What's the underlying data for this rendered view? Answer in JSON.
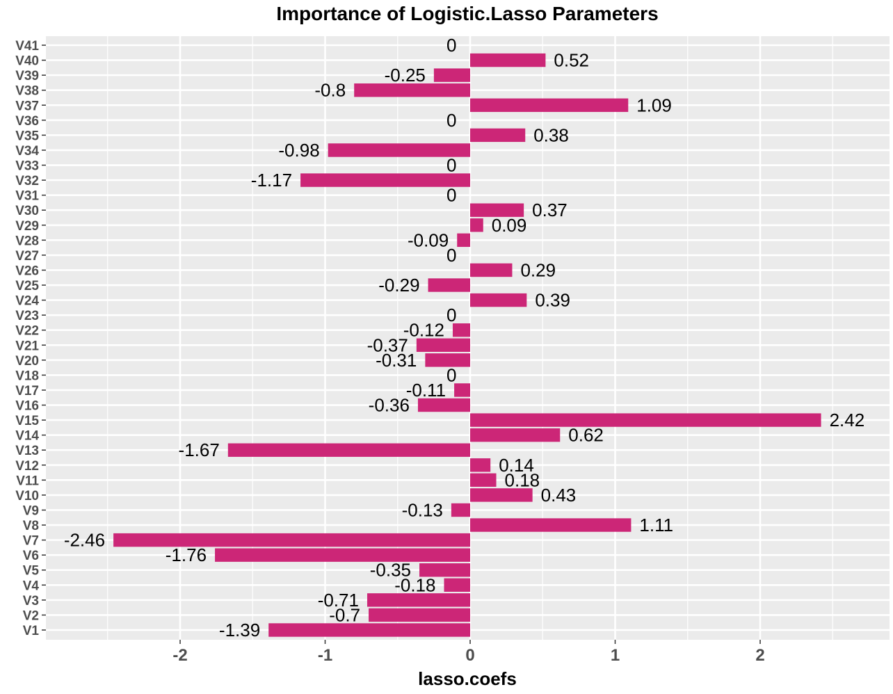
{
  "chart_data": {
    "type": "bar",
    "orientation": "horizontal",
    "title": "Importance of Logistic.Lasso Parameters",
    "xlabel": "lasso.coefs",
    "ylabel": "",
    "xlim": [
      -2.55,
      2.55
    ],
    "x_ticks": [
      -2,
      -1,
      0,
      1,
      2
    ],
    "grid": true,
    "bar_color": "#CC2677",
    "panel_background": "#EBEBEB",
    "grid_color": "#FFFFFF",
    "categories": [
      "V1",
      "V2",
      "V3",
      "V4",
      "V5",
      "V6",
      "V7",
      "V8",
      "V9",
      "V10",
      "V11",
      "V12",
      "V13",
      "V14",
      "V15",
      "V16",
      "V17",
      "V18",
      "V20",
      "V21",
      "V22",
      "V23",
      "V24",
      "V25",
      "V26",
      "V27",
      "V28",
      "V29",
      "V30",
      "V31",
      "V32",
      "V33",
      "V34",
      "V35",
      "V36",
      "V37",
      "V38",
      "V39",
      "V40",
      "V41"
    ],
    "values": [
      -1.39,
      -0.7,
      -0.71,
      -0.18,
      -0.35,
      -1.76,
      -2.46,
      1.11,
      -0.13,
      0.43,
      0.18,
      0.14,
      -1.67,
      0.62,
      2.42,
      -0.36,
      -0.11,
      0,
      -0.31,
      -0.37,
      -0.12,
      0,
      0.39,
      -0.29,
      0.29,
      0,
      -0.09,
      0.09,
      0.37,
      0,
      -1.17,
      0,
      -0.98,
      0.38,
      0,
      1.09,
      -0.8,
      -0.25,
      0.52,
      0
    ],
    "data_labels": [
      "-1.39",
      "-0.7",
      "-0.71",
      "-0.18",
      "-0.35",
      "-1.76",
      "-2.46",
      "1.11",
      "-0.13",
      "0.43",
      "0.18",
      "0.14",
      "-1.67",
      "0.62",
      "2.42",
      "-0.36",
      "-0.11",
      "0",
      "-0.31",
      "-0.37",
      "-0.12",
      "0",
      "0.39",
      "-0.29",
      "0.29",
      "0",
      "-0.09",
      "0.09",
      "0.37",
      "0",
      "-1.17",
      "0",
      "-0.98",
      "0.38",
      "0",
      "1.09",
      "-0.8",
      "-0.25",
      "0.52",
      "0"
    ]
  }
}
